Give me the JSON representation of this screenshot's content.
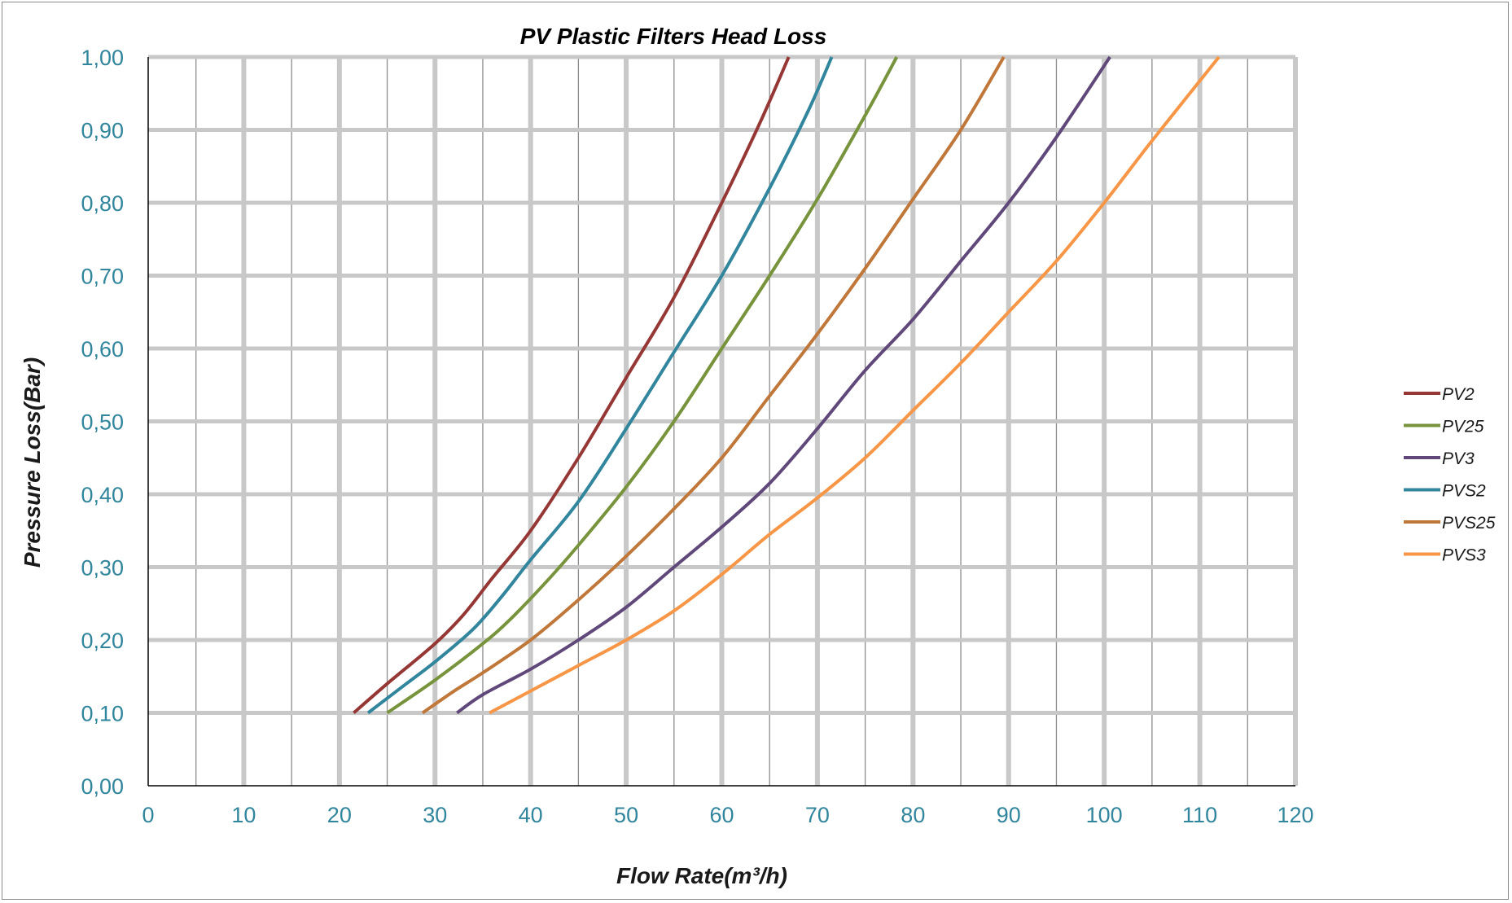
{
  "chart_data": {
    "type": "line",
    "title": "PV Plastic Filters Head Loss",
    "xlabel": "Flow Rate(m³/h)",
    "ylabel": "Pressure Loss(Bar)",
    "xlim": [
      0,
      120
    ],
    "ylim": [
      0,
      1
    ],
    "x_ticks": [
      "0",
      "10",
      "20",
      "30",
      "40",
      "50",
      "60",
      "70",
      "80",
      "90",
      "100",
      "110",
      "120"
    ],
    "y_ticks": [
      "0,00",
      "0,10",
      "0,20",
      "0,30",
      "0,40",
      "0,50",
      "0,60",
      "0,70",
      "0,80",
      "0,90",
      "1,00"
    ],
    "grid": true,
    "legend_position": "right",
    "series": [
      {
        "name": "PV2",
        "color": "#953735",
        "points": [
          [
            21.5,
            0.1
          ],
          [
            25,
            0.14
          ],
          [
            30,
            0.195
          ],
          [
            33,
            0.235
          ],
          [
            36,
            0.285
          ],
          [
            40,
            0.35
          ],
          [
            45,
            0.45
          ],
          [
            50,
            0.56
          ],
          [
            55,
            0.67
          ],
          [
            60,
            0.8
          ],
          [
            64,
            0.91
          ],
          [
            67,
            1.0
          ]
        ]
      },
      {
        "name": "PV25",
        "color": "#77933c",
        "points": [
          [
            25,
            0.1
          ],
          [
            30,
            0.145
          ],
          [
            35,
            0.195
          ],
          [
            38,
            0.23
          ],
          [
            42,
            0.285
          ],
          [
            45,
            0.33
          ],
          [
            50,
            0.41
          ],
          [
            55,
            0.5
          ],
          [
            60,
            0.6
          ],
          [
            65,
            0.7
          ],
          [
            70,
            0.805
          ],
          [
            75,
            0.92
          ],
          [
            78.3,
            1.0
          ]
        ]
      },
      {
        "name": "PV3",
        "color": "#60497a",
        "points": [
          [
            32.3,
            0.1
          ],
          [
            35,
            0.125
          ],
          [
            40,
            0.16
          ],
          [
            45,
            0.2
          ],
          [
            50,
            0.245
          ],
          [
            55,
            0.3
          ],
          [
            60,
            0.355
          ],
          [
            65,
            0.415
          ],
          [
            70,
            0.49
          ],
          [
            75,
            0.57
          ],
          [
            80,
            0.64
          ],
          [
            85,
            0.72
          ],
          [
            90,
            0.8
          ],
          [
            95,
            0.89
          ],
          [
            100.6,
            1.0
          ]
        ]
      },
      {
        "name": "PVS2",
        "color": "#31859c",
        "points": [
          [
            23,
            0.1
          ],
          [
            27,
            0.14
          ],
          [
            30,
            0.17
          ],
          [
            34,
            0.215
          ],
          [
            37,
            0.26
          ],
          [
            40,
            0.31
          ],
          [
            45,
            0.39
          ],
          [
            50,
            0.49
          ],
          [
            55,
            0.595
          ],
          [
            60,
            0.7
          ],
          [
            65,
            0.82
          ],
          [
            69,
            0.925
          ],
          [
            71.5,
            1.0
          ]
        ]
      },
      {
        "name": "PVS25",
        "color": "#c0773a",
        "points": [
          [
            28.7,
            0.1
          ],
          [
            32,
            0.13
          ],
          [
            35,
            0.155
          ],
          [
            40,
            0.2
          ],
          [
            45,
            0.255
          ],
          [
            50,
            0.315
          ],
          [
            55,
            0.38
          ],
          [
            60,
            0.45
          ],
          [
            65,
            0.535
          ],
          [
            70,
            0.62
          ],
          [
            75,
            0.71
          ],
          [
            80,
            0.805
          ],
          [
            85,
            0.9
          ],
          [
            89.5,
            1.0
          ]
        ]
      },
      {
        "name": "PVS3",
        "color": "#f79646",
        "points": [
          [
            35.7,
            0.1
          ],
          [
            40,
            0.13
          ],
          [
            45,
            0.165
          ],
          [
            50,
            0.2
          ],
          [
            55,
            0.24
          ],
          [
            60,
            0.29
          ],
          [
            65,
            0.345
          ],
          [
            70,
            0.395
          ],
          [
            75,
            0.45
          ],
          [
            80,
            0.515
          ],
          [
            85,
            0.58
          ],
          [
            90,
            0.65
          ],
          [
            95,
            0.72
          ],
          [
            100,
            0.8
          ],
          [
            105,
            0.885
          ],
          [
            112,
            1.0
          ]
        ]
      }
    ]
  }
}
